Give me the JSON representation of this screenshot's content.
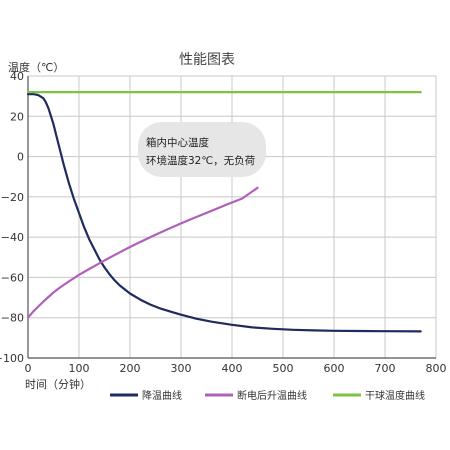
{
  "chart_data": {
    "type": "line",
    "title": "性能图表",
    "ylabel": "温度（℃）",
    "xlabel": "时间（分钟）",
    "xlim": [
      0,
      800
    ],
    "ylim": [
      -100,
      40
    ],
    "x_ticks": [
      0,
      100,
      200,
      300,
      400,
      500,
      600,
      700,
      800
    ],
    "y_ticks": [
      40,
      20,
      0,
      -20,
      -40,
      -60,
      -80,
      -100
    ],
    "y_tick_labels": [
      "40",
      "20",
      "0",
      "−20",
      "−40",
      "−60",
      "−80",
      "−100"
    ],
    "grid": true,
    "legend_position": "bottom",
    "annotation": {
      "line1": "箱内中心温度",
      "line2": "环境温度32℃，无负荷"
    },
    "series": [
      {
        "name": "降温曲线",
        "color": "#1f2a5e",
        "x": [
          0,
          10,
          20,
          30,
          35,
          40,
          45,
          50,
          55,
          60,
          70,
          80,
          90,
          100,
          110,
          120,
          130,
          140,
          150,
          160,
          170,
          180,
          200,
          220,
          240,
          260,
          280,
          300,
          330,
          360,
          400,
          440,
          480,
          520,
          560,
          600,
          650,
          700,
          770
        ],
        "y": [
          31,
          31,
          30.5,
          29,
          27,
          24,
          20,
          16,
          11,
          6,
          -4,
          -13,
          -21,
          -28,
          -35,
          -41,
          -46,
          -51,
          -55,
          -58.5,
          -61.5,
          -64,
          -68,
          -71,
          -73.5,
          -75.5,
          -77,
          -78.5,
          -80.5,
          -82,
          -83.5,
          -84.8,
          -85.5,
          -86,
          -86.3,
          -86.5,
          -86.6,
          -86.7,
          -86.8
        ]
      },
      {
        "name": "断电后升温曲线",
        "color": "#b060b8",
        "x": [
          0,
          10,
          20,
          30,
          40,
          50,
          60,
          80,
          100,
          120,
          140,
          160,
          180,
          200,
          220,
          250,
          280,
          300,
          330,
          360,
          390,
          420,
          450
        ],
        "y": [
          -80,
          -77,
          -74.5,
          -72,
          -69.7,
          -67.5,
          -65.5,
          -62,
          -58.7,
          -55.8,
          -53,
          -50.2,
          -47.5,
          -44.9,
          -42.4,
          -38.8,
          -35.4,
          -33.2,
          -30,
          -26.9,
          -23.8,
          -20.8,
          -15.5
        ]
      },
      {
        "name": "干球温度曲线",
        "color": "#7dc242",
        "x": [
          0,
          100,
          200,
          300,
          400,
          500,
          600,
          700,
          770
        ],
        "y": [
          32,
          32,
          32,
          32,
          32,
          32,
          32,
          32,
          32
        ]
      }
    ]
  }
}
